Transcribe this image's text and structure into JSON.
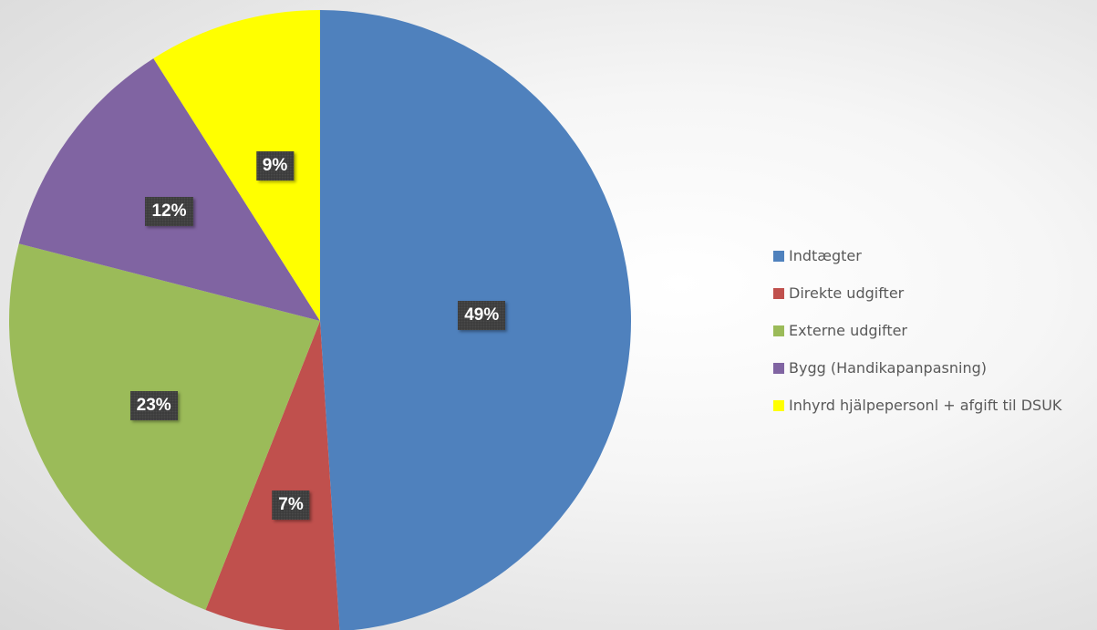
{
  "chart_data": {
    "type": "pie",
    "categories": [
      "Indtægter",
      "Direkte udgifter",
      "Externe udgifter",
      "Bygg (Handikapanpasning)",
      "Inhyrd hjälpepersonl + afgift til DSUK"
    ],
    "values": [
      49,
      7,
      23,
      12,
      9
    ],
    "data_labels": [
      "49%",
      "7%",
      "23%",
      "12%",
      "9%"
    ],
    "colors": [
      "#4F81BD",
      "#C0504D",
      "#9BBB59",
      "#8064A2",
      "#FFFF00"
    ],
    "start_angle_deg": 0,
    "direction": "clockwise",
    "legend_position": "right"
  }
}
